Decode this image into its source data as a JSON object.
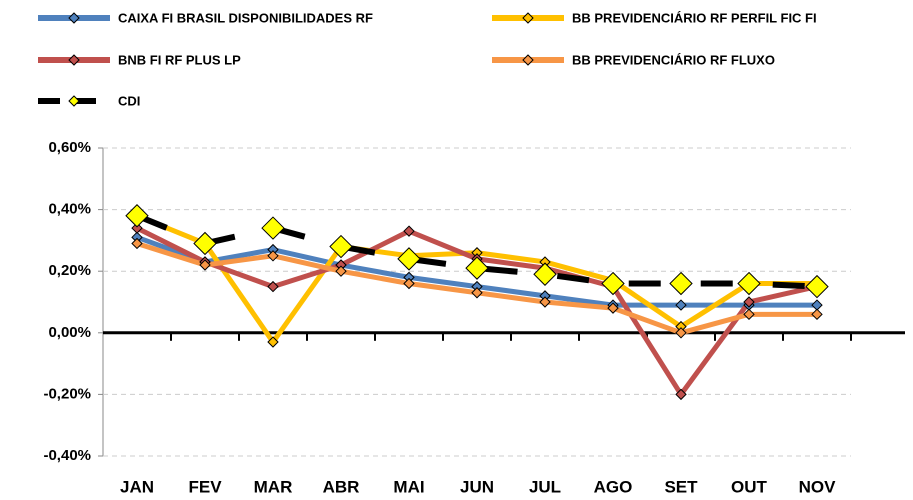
{
  "chart_data": {
    "type": "line",
    "categories": [
      "JAN",
      "FEV",
      "MAR",
      "ABR",
      "MAI",
      "JUN",
      "JUL",
      "AGO",
      "SET",
      "OUT",
      "NOV"
    ],
    "series": [
      {
        "name": "CAIXA FI BRASIL DISPONIBILIDADES RF",
        "color": "#4f81bd",
        "values": [
          0.31,
          0.23,
          0.27,
          0.22,
          0.18,
          0.15,
          0.12,
          0.09,
          0.09,
          0.09,
          0.09
        ]
      },
      {
        "name": "BB PREVIDENCIÁRIO RF PERFIL FIC FI",
        "color": "#ffc000",
        "values": [
          0.38,
          0.29,
          -0.03,
          0.28,
          0.25,
          0.26,
          0.23,
          0.17,
          0.02,
          0.16,
          0.16
        ]
      },
      {
        "name": "BNB FI RF PLUS LP",
        "color": "#c0504d",
        "values": [
          0.34,
          0.23,
          0.15,
          0.22,
          0.33,
          0.24,
          0.21,
          0.15,
          -0.2,
          0.1,
          0.15
        ]
      },
      {
        "name": "BB PREVIDENCIÁRIO RF FLUXO",
        "color": "#f79646",
        "values": [
          0.29,
          0.22,
          0.25,
          0.2,
          0.16,
          0.13,
          0.1,
          0.08,
          0.0,
          0.06,
          0.06
        ]
      },
      {
        "name": "CDI",
        "color": "#000000",
        "values": [
          0.38,
          0.29,
          0.34,
          0.28,
          0.24,
          0.21,
          0.19,
          0.16,
          0.16,
          0.16,
          0.15
        ]
      }
    ],
    "ylim": [
      -0.4,
      0.6
    ],
    "yticks": [
      {
        "value": 0.6,
        "label": "0,60%"
      },
      {
        "value": 0.4,
        "label": "0,40%"
      },
      {
        "value": 0.2,
        "label": "0,20%"
      },
      {
        "value": 0,
        "label": "0,00%"
      },
      {
        "value": -0.2,
        "label": "-0,20%"
      },
      {
        "value": -0.4,
        "label": "-0,40%"
      }
    ],
    "grid": true
  }
}
